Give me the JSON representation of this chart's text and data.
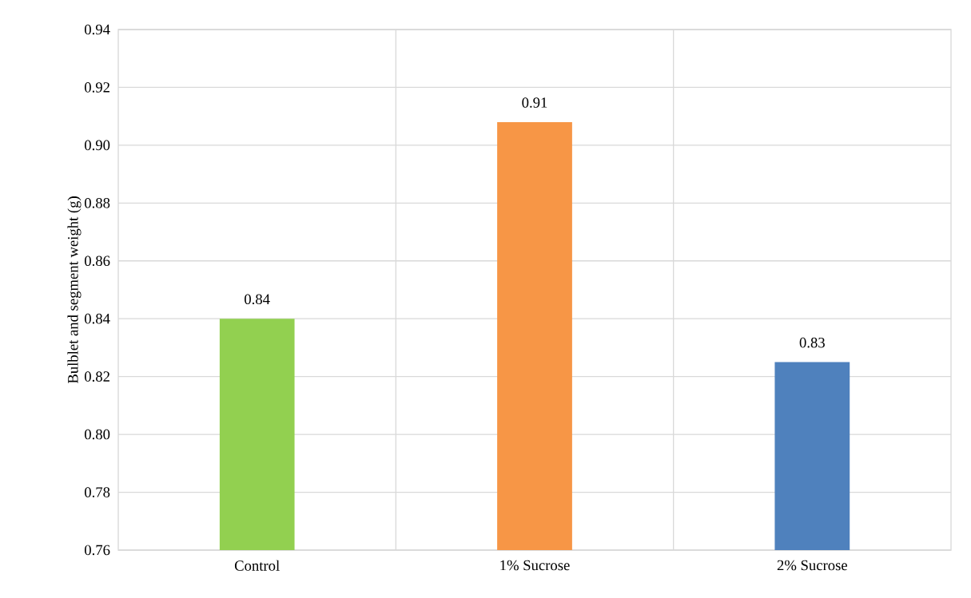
{
  "chart_data": {
    "type": "bar",
    "ylabel": "Bulblet and segment weight (g)",
    "categories": [
      "Control",
      "1% Sucrose",
      "2% Sucrose"
    ],
    "values": [
      0.84,
      0.908,
      0.825
    ],
    "value_labels": [
      "0.84",
      "0.91",
      "0.83"
    ],
    "colors": [
      "#92d050",
      "#f79646",
      "#4f81bd"
    ],
    "ylim": [
      0.76,
      0.94
    ],
    "yticks": [
      {
        "value": 0.76,
        "label": "0.76"
      },
      {
        "value": 0.78,
        "label": "0.78"
      },
      {
        "value": 0.8,
        "label": "0.80"
      },
      {
        "value": 0.82,
        "label": "0.82"
      },
      {
        "value": 0.84,
        "label": "0.84"
      },
      {
        "value": 0.86,
        "label": "0.86"
      },
      {
        "value": 0.88,
        "label": "0.88"
      },
      {
        "value": 0.9,
        "label": "0.90"
      },
      {
        "value": 0.92,
        "label": "0.92"
      },
      {
        "value": 0.94,
        "label": "0.94"
      }
    ],
    "grid": true
  }
}
